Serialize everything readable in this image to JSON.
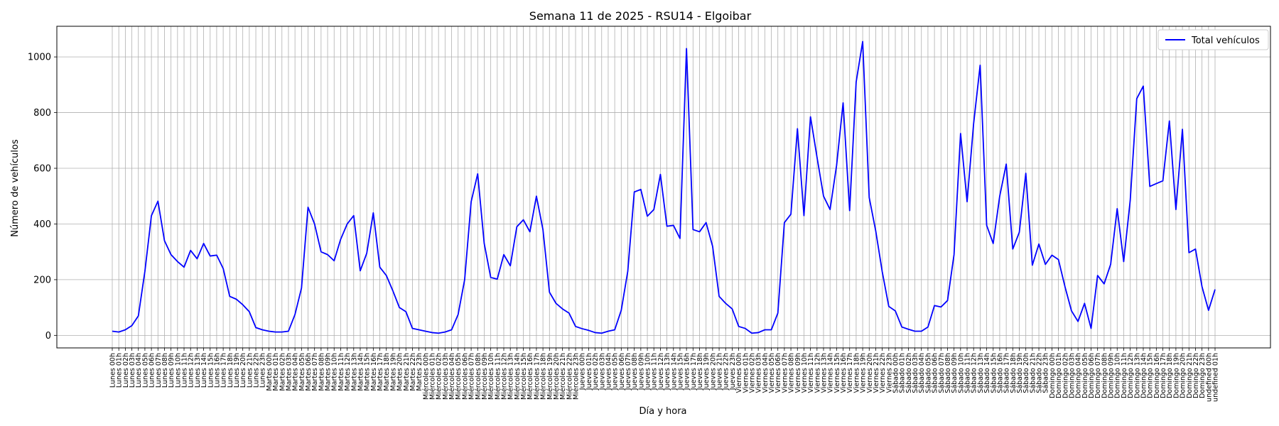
{
  "chart_data": {
    "type": "line",
    "title": "Semana 11 de 2025 - RSU14 - Elgoibar",
    "xlabel": "Día y hora",
    "ylabel": "Número de vehículos",
    "ylim": [
      -45,
      1110
    ],
    "yticks": [
      0,
      200,
      400,
      600,
      800,
      1000
    ],
    "grid": true,
    "legend_position": "top-right",
    "days": [
      "Lunes",
      "Martes",
      "Miércoles",
      "Jueves",
      "Viernes",
      "Sábado",
      "Domingo"
    ],
    "series": [
      {
        "name": "Total vehículos",
        "color": "#0000ff",
        "values": [
          15,
          12,
          20,
          35,
          70,
          230,
          430,
          482,
          340,
          290,
          265,
          245,
          305,
          275,
          330,
          285,
          288,
          240,
          140,
          130,
          110,
          85,
          28,
          20,
          15,
          12,
          12,
          15,
          75,
          170,
          460,
          400,
          300,
          290,
          268,
          345,
          400,
          430,
          232,
          295,
          440,
          245,
          215,
          160,
          100,
          85,
          25,
          20,
          15,
          10,
          8,
          12,
          20,
          75,
          200,
          480,
          580,
          330,
          208,
          202,
          290,
          250,
          390,
          415,
          372,
          500,
          380,
          155,
          115,
          95,
          80,
          32,
          24,
          18,
          10,
          8,
          15,
          20,
          90,
          230,
          515,
          524,
          428,
          452,
          578,
          392,
          395,
          348,
          1030,
          380,
          372,
          405,
          320,
          140,
          115,
          95,
          32,
          25,
          8,
          10,
          20,
          20,
          80,
          405,
          435,
          742,
          430,
          785,
          640,
          500,
          452,
          610,
          835,
          448,
          910,
          1055,
          495,
          375,
          228,
          104,
          88,
          30,
          22,
          15,
          15,
          30,
          107,
          102,
          125,
          290,
          725,
          480,
          760,
          970,
          395,
          330,
          500,
          615,
          310,
          370,
          582,
          252,
          328,
          255,
          288,
          272,
          175,
          88,
          50,
          115,
          25,
          215,
          185,
          255,
          455,
          265,
          485,
          850,
          895,
          535,
          545,
          555,
          770,
          452,
          740,
          297,
          310,
          175,
          90,
          165
        ]
      }
    ]
  }
}
